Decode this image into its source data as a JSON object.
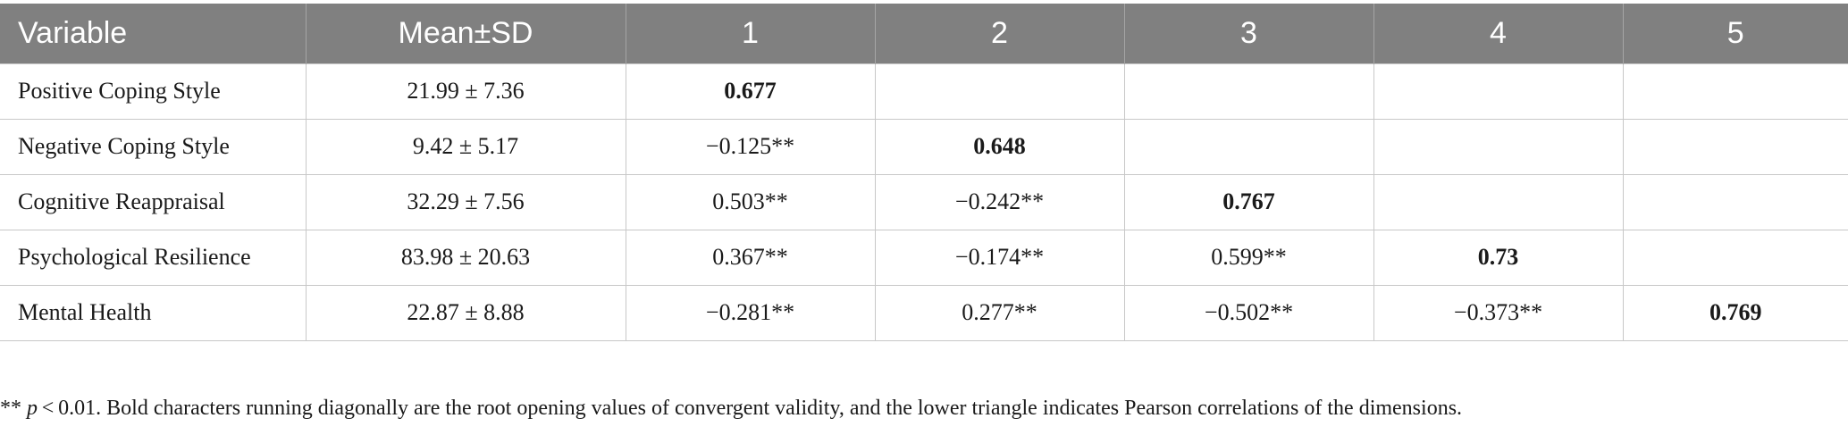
{
  "table": {
    "headers": [
      "Variable",
      "Mean±SD",
      "1",
      "2",
      "3",
      "4",
      "5"
    ],
    "rows": [
      {
        "variable": "Positive Coping Style",
        "mean_sd": "21.99 ± 7.36",
        "cells": [
          "0.677",
          "",
          "",
          "",
          ""
        ]
      },
      {
        "variable": "Negative Coping Style",
        "mean_sd": "9.42 ± 5.17",
        "cells": [
          "−0.125**",
          "0.648",
          "",
          "",
          ""
        ]
      },
      {
        "variable": "Cognitive Reappraisal",
        "mean_sd": "32.29 ± 7.56",
        "cells": [
          "0.503**",
          "−0.242**",
          "0.767",
          "",
          ""
        ]
      },
      {
        "variable": "Psychological Resilience",
        "mean_sd": "83.98 ± 20.63",
        "cells": [
          "0.367**",
          "−0.174**",
          "0.599**",
          "0.73",
          ""
        ]
      },
      {
        "variable": "Mental Health",
        "mean_sd": "22.87 ± 8.88",
        "cells": [
          "−0.281**",
          "0.277**",
          "−0.502**",
          "−0.373**",
          "0.769"
        ]
      }
    ]
  },
  "note": {
    "prefix": "** ",
    "p_symbol": "p",
    "text": " < 0.01. Bold characters running diagonally are the root opening values of convergent validity, and the lower triangle indicates Pearson correlations of the dimensions."
  },
  "colors": {
    "header_bg": "#808080",
    "header_text": "#ffffff",
    "grid_line": "#c8c8c8"
  }
}
